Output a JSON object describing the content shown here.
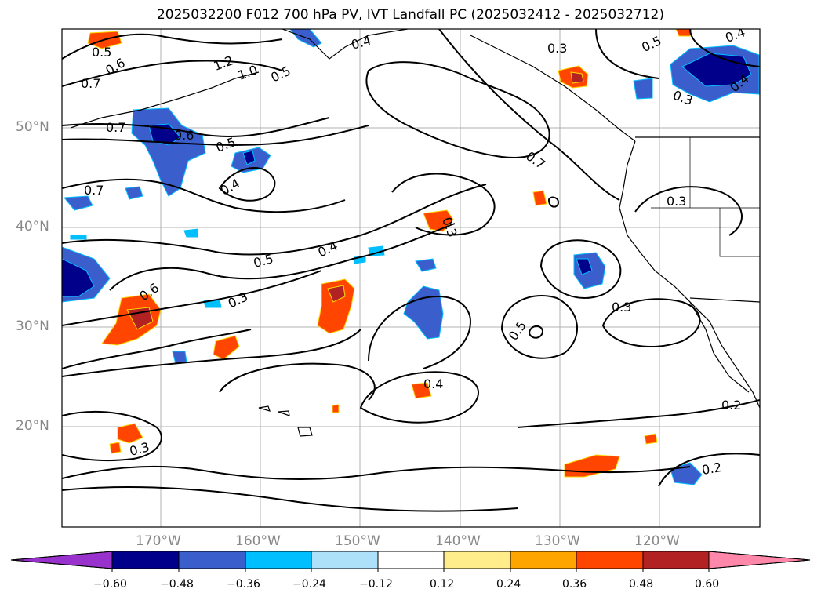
{
  "title": "2025032200 F012 700 hPa PV, IVT Landfall PC (2025032412 - 2025032712)",
  "lat_labels": [
    "50°N",
    "40°N",
    "30°N",
    "20°N"
  ],
  "lon_labels": [
    "170°W",
    "160°W",
    "150°W",
    "140°W",
    "130°W",
    "120°W"
  ],
  "colorbar": {
    "ticks": [
      "−0.60",
      "−0.48",
      "−0.36",
      "−0.24",
      "−0.12",
      "0.12",
      "0.24",
      "0.36",
      "0.48",
      "0.60"
    ],
    "colors": [
      "#9932CC",
      "#00008B",
      "#3A5FCD",
      "#00BFFF",
      "#ADE1FA",
      "#FFFFFF",
      "#FFEC8B",
      "#FFA500",
      "#FF4500",
      "#B22222",
      "#FF88AA"
    ]
  },
  "contour_labels": [
    "0.5",
    "0.6",
    "0.7",
    "0.7",
    "1.2",
    "1.0",
    "0.5",
    "0.4",
    "0.3",
    "0.5",
    "0.4",
    "0.6",
    "0.5",
    "0.4",
    "0.7",
    "0.7",
    "0.3",
    "0.5",
    "0.4",
    "0.6",
    "0.3",
    "0.3",
    "0.5",
    "0.3",
    "0.4",
    "0.2",
    "0.3",
    "0.2",
    "0.3",
    "0.4"
  ]
}
